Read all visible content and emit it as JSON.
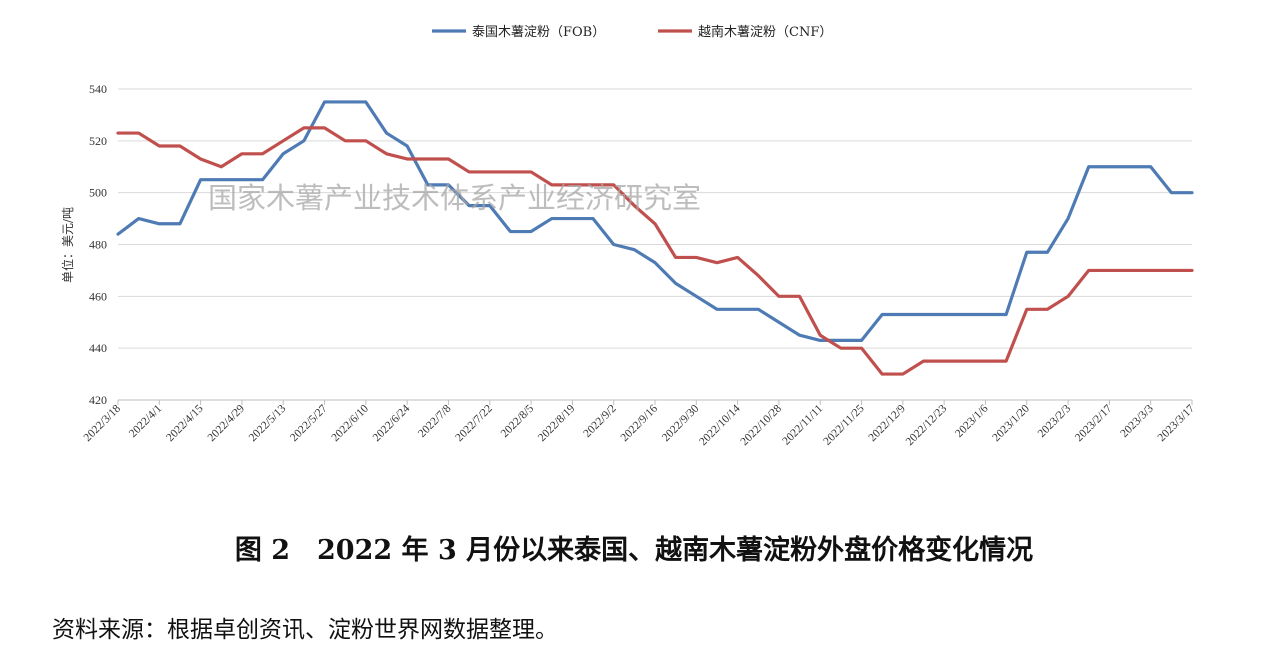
{
  "chart_data": {
    "type": "line",
    "ylabel": "单位：美元/吨",
    "ylim": [
      420,
      540
    ],
    "yticks": [
      420,
      440,
      460,
      480,
      500,
      520,
      540
    ],
    "grid": "horizontal",
    "legend_position": "top-center",
    "watermark": "国家木薯产业技术体系产业经济研究室",
    "x": [
      "2022/3/18",
      "2022/3/25",
      "2022/4/1",
      "2022/4/8",
      "2022/4/15",
      "2022/4/22",
      "2022/4/29",
      "2022/5/6",
      "2022/5/13",
      "2022/5/20",
      "2022/5/27",
      "2022/6/3",
      "2022/6/10",
      "2022/6/17",
      "2022/6/24",
      "2022/7/1",
      "2022/7/8",
      "2022/7/15",
      "2022/7/22",
      "2022/7/29",
      "2022/8/5",
      "2022/8/12",
      "2022/8/19",
      "2022/8/26",
      "2022/9/2",
      "2022/9/9",
      "2022/9/16",
      "2022/9/23",
      "2022/9/30",
      "2022/10/7",
      "2022/10/14",
      "2022/10/21",
      "2022/10/28",
      "2022/11/4",
      "2022/11/11",
      "2022/11/18",
      "2022/11/25",
      "2022/12/2",
      "2022/12/9",
      "2022/12/16",
      "2022/12/23",
      "2022/12/30",
      "2023/1/6",
      "2023/1/13",
      "2023/1/20",
      "2023/1/27",
      "2023/2/3",
      "2023/2/10",
      "2023/2/17",
      "2023/2/24",
      "2023/3/3",
      "2023/3/10",
      "2023/3/17"
    ],
    "xtick_labels": [
      "2022/3/18",
      "2022/4/1",
      "2022/4/15",
      "2022/4/29",
      "2022/5/13",
      "2022/5/27",
      "2022/6/10",
      "2022/6/24",
      "2022/7/8",
      "2022/7/22",
      "2022/8/5",
      "2022/8/19",
      "2022/9/2",
      "2022/9/16",
      "2022/9/30",
      "2022/10/14",
      "2022/10/28",
      "2022/11/11",
      "2022/11/25",
      "2022/12/9",
      "2022/12/23",
      "2023/1/6",
      "2023/1/20",
      "2023/2/3",
      "2023/2/17",
      "2023/3/3",
      "2023/3/17"
    ],
    "series": [
      {
        "name": "泰国木薯淀粉（FOB）",
        "color": "#4f7bb4",
        "values": [
          484,
          490,
          488,
          488,
          505,
          505,
          505,
          505,
          515,
          520,
          535,
          535,
          535,
          523,
          518,
          503,
          503,
          495,
          495,
          485,
          485,
          490,
          490,
          490,
          480,
          478,
          473,
          465,
          460,
          455,
          455,
          455,
          450,
          445,
          443,
          443,
          443,
          453,
          453,
          453,
          453,
          453,
          453,
          453,
          477,
          477,
          490,
          510,
          510,
          510,
          510,
          500,
          500
        ]
      },
      {
        "name": "越南木薯淀粉（CNF）",
        "color": "#c0504d",
        "values": [
          523,
          523,
          518,
          518,
          513,
          510,
          515,
          515,
          520,
          525,
          525,
          520,
          520,
          515,
          513,
          513,
          513,
          508,
          508,
          508,
          508,
          503,
          503,
          503,
          503,
          495,
          488,
          475,
          475,
          473,
          475,
          468,
          460,
          460,
          445,
          440,
          440,
          430,
          430,
          435,
          435,
          435,
          435,
          435,
          455,
          455,
          460,
          470,
          470,
          470,
          470,
          470,
          470
        ]
      }
    ]
  },
  "caption": "图 2　2022 年 3 月份以来泰国、越南木薯淀粉外盘价格变化情况",
  "source": "资料来源：根据卓创资讯、淀粉世界网数据整理。"
}
